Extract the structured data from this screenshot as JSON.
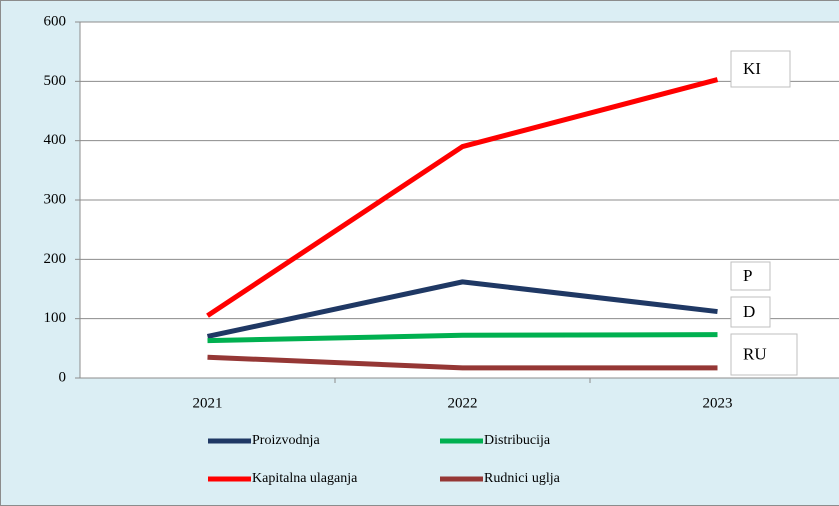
{
  "chart_data": {
    "type": "line",
    "categories": [
      "2021",
      "2022",
      "2023"
    ],
    "series": [
      {
        "name": "Proizvodnja",
        "color": "#1f3864",
        "values": [
          70,
          162,
          112
        ]
      },
      {
        "name": "Distribucija",
        "color": "#00b050",
        "values": [
          63,
          72,
          73
        ]
      },
      {
        "name": "Kapitalna ulaganja",
        "color": "#ff0000",
        "values": [
          105,
          390,
          503
        ]
      },
      {
        "name": "Rudnici uglja",
        "color": "#953735",
        "values": [
          35,
          17,
          17
        ]
      }
    ],
    "annotations": [
      {
        "text": "KI",
        "color": "#ff0000"
      },
      {
        "text": "P",
        "color": "#1f3864"
      },
      {
        "text": "D",
        "color": "#00b050"
      },
      {
        "text": "RU",
        "color": "#a0522d"
      }
    ],
    "ylim": [
      0,
      600
    ],
    "yticks": [
      0,
      100,
      200,
      300,
      400,
      500,
      600
    ],
    "grid": true
  }
}
